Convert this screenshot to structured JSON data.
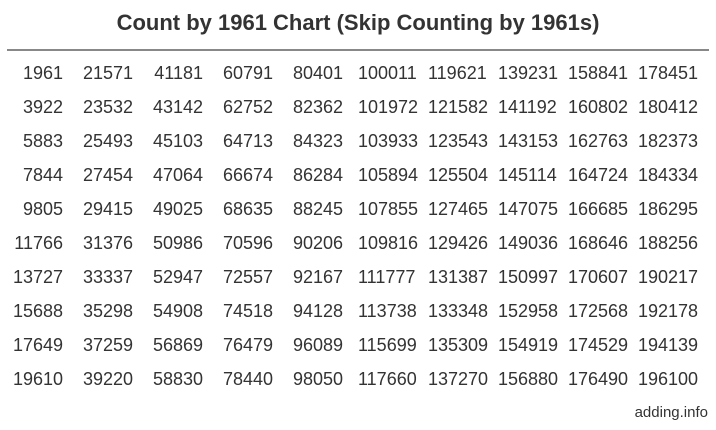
{
  "title": "Count by 1961 Chart (Skip Counting by 1961s)",
  "footer": "adding.info",
  "colors": {
    "background": "#ffffff",
    "text": "#333333",
    "rule": "#888888"
  },
  "chart_data": {
    "type": "table",
    "title": "Count by 1961 Chart (Skip Counting by 1961s)",
    "step": 1961,
    "rows": [
      [
        1961,
        21571,
        41181,
        60791,
        80401,
        100011,
        119621,
        139231,
        158841,
        178451
      ],
      [
        3922,
        23532,
        43142,
        62752,
        82362,
        101972,
        121582,
        141192,
        160802,
        180412
      ],
      [
        5883,
        25493,
        45103,
        64713,
        84323,
        103933,
        123543,
        143153,
        162763,
        182373
      ],
      [
        7844,
        27454,
        47064,
        66674,
        86284,
        105894,
        125504,
        145114,
        164724,
        184334
      ],
      [
        9805,
        29415,
        49025,
        68635,
        88245,
        107855,
        127465,
        147075,
        166685,
        186295
      ],
      [
        11766,
        31376,
        50986,
        70596,
        90206,
        109816,
        129426,
        149036,
        168646,
        188256
      ],
      [
        13727,
        33337,
        52947,
        72557,
        92167,
        111777,
        131387,
        150997,
        170607,
        190217
      ],
      [
        15688,
        35298,
        54908,
        74518,
        94128,
        113738,
        133348,
        152958,
        172568,
        192178
      ],
      [
        17649,
        37259,
        56869,
        76479,
        96089,
        115699,
        135309,
        154919,
        174529,
        194139
      ],
      [
        19610,
        39220,
        58830,
        78440,
        98050,
        117660,
        137270,
        156880,
        176490,
        196100
      ]
    ]
  }
}
